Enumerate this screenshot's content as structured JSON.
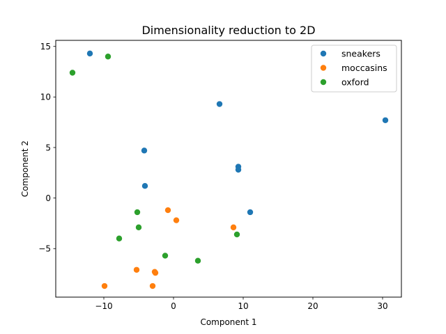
{
  "chart_data": {
    "type": "scatter",
    "title": "Dimensionality reduction to 2D",
    "xlabel": "Component 1",
    "ylabel": "Component 2",
    "xlim": [
      -16.9,
      32.7
    ],
    "ylim": [
      -9.8,
      15.6
    ],
    "xticks": [
      -10,
      0,
      10,
      20,
      30
    ],
    "yticks": [
      -5,
      0,
      5,
      10,
      15
    ],
    "grid": false,
    "legend_position": "top-right",
    "series": [
      {
        "name": "sneakers",
        "color": "#1f77b4",
        "points": [
          [
            -12.0,
            14.3
          ],
          [
            6.6,
            9.3
          ],
          [
            30.4,
            7.7
          ],
          [
            -4.2,
            4.7
          ],
          [
            -4.1,
            1.2
          ],
          [
            9.3,
            3.1
          ],
          [
            9.3,
            2.8
          ],
          [
            11.0,
            -1.4
          ]
        ]
      },
      {
        "name": "moccasins",
        "color": "#ff7f0e",
        "points": [
          [
            -0.8,
            -1.2
          ],
          [
            0.4,
            -2.2
          ],
          [
            8.6,
            -2.9
          ],
          [
            -5.3,
            -7.1
          ],
          [
            -2.7,
            -7.3
          ],
          [
            -2.6,
            -7.4
          ],
          [
            -9.9,
            -8.7
          ],
          [
            -3.0,
            -8.7
          ]
        ]
      },
      {
        "name": "oxford",
        "color": "#2ca02c",
        "points": [
          [
            -14.5,
            12.4
          ],
          [
            -9.4,
            14.0
          ],
          [
            -5.2,
            -1.4
          ],
          [
            -5.0,
            -2.9
          ],
          [
            -7.8,
            -4.0
          ],
          [
            9.1,
            -3.6
          ],
          [
            -1.2,
            -5.7
          ],
          [
            3.5,
            -6.2
          ]
        ]
      }
    ]
  }
}
